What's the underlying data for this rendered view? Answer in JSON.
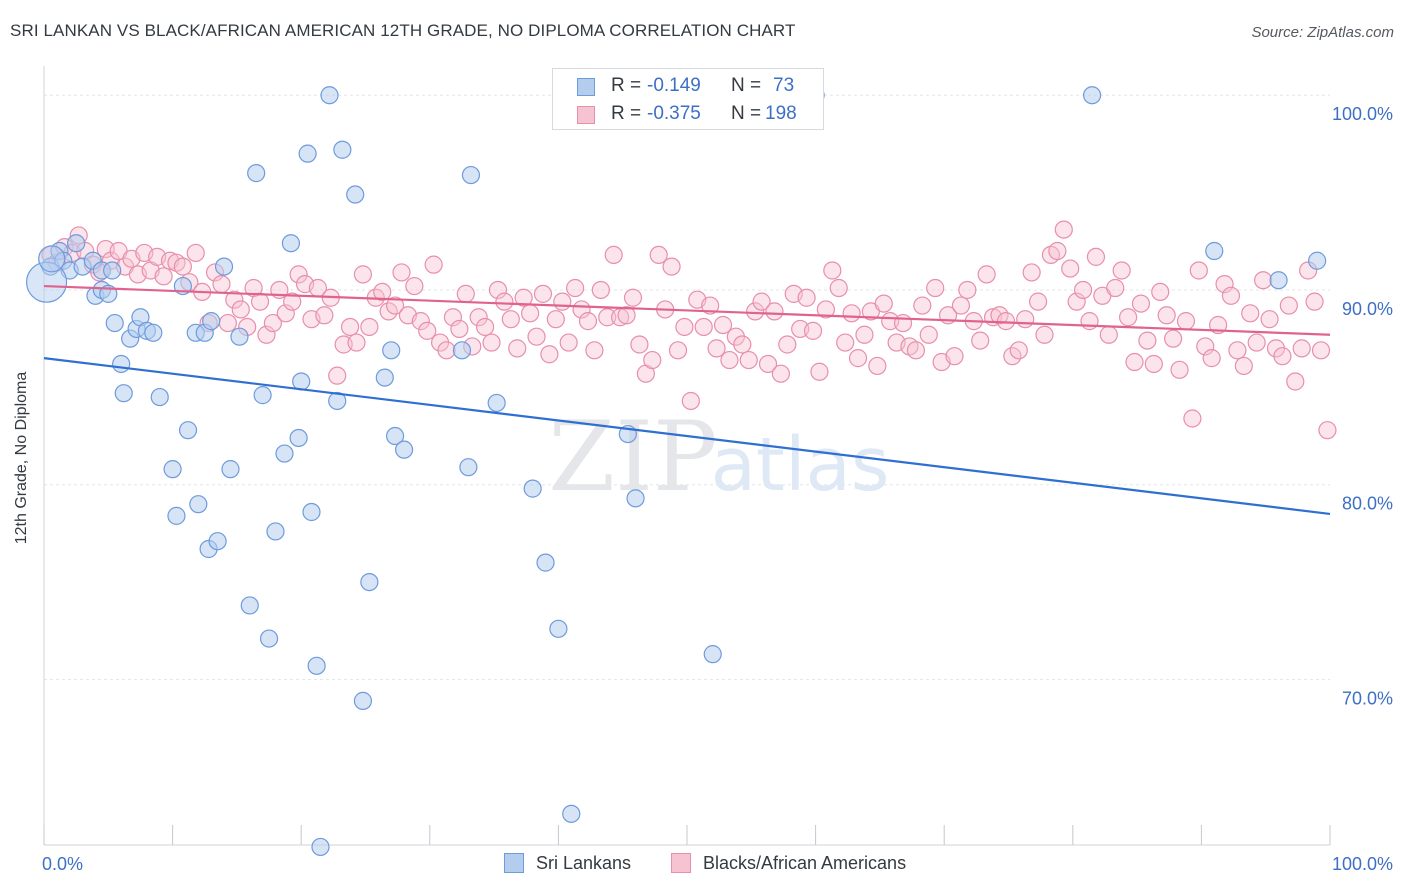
{
  "title": "SRI LANKAN VS BLACK/AFRICAN AMERICAN 12TH GRADE, NO DIPLOMA CORRELATION CHART",
  "source": "Source: ZipAtlas.com",
  "watermark": {
    "zip": "ZIP",
    "atlas": "atlas"
  },
  "colors": {
    "blue_fill": "#b4cdef",
    "blue_stroke": "#6e9bdc",
    "blue_line": "#2f6fd1",
    "pink_fill": "#f6c3d3",
    "pink_stroke": "#e88fab",
    "pink_line": "#e0628e",
    "axis_text": "#3d6fc6",
    "grid": "#e3e6ea"
  },
  "stats": [
    {
      "r_label": "R =",
      "r_value": "-0.149",
      "n_label": "N =",
      "n_value": "73"
    },
    {
      "r_label": "R =",
      "r_value": "-0.375",
      "n_label": "N =",
      "n_value": "198"
    }
  ],
  "legend": [
    {
      "label": "Sri Lankans"
    },
    {
      "label": "Blacks/African Americans"
    }
  ],
  "chart_data": {
    "type": "scatter",
    "xlabel": "",
    "ylabel": "12th Grade, No Diploma",
    "xlim": [
      0,
      100
    ],
    "ylim": [
      61.5,
      101.5
    ],
    "x_tick_labels": [
      "0.0%",
      "100.0%"
    ],
    "y_ticks": [
      70,
      80,
      90,
      100
    ],
    "y_tick_labels": [
      "70.0%",
      "80.0%",
      "90.0%",
      "100.0%"
    ],
    "grid": true,
    "legend_position": "bottom-center",
    "series": [
      {
        "name": "Sri Lankans",
        "r": -0.149,
        "n": 73,
        "trend": {
          "x": [
            0,
            100
          ],
          "y": [
            86.5,
            78.5
          ]
        },
        "points": [
          [
            0.5,
            91.2
          ],
          [
            1.2,
            92
          ],
          [
            1.5,
            91.5
          ],
          [
            2,
            91
          ],
          [
            2.5,
            92.4
          ],
          [
            3,
            91.2
          ],
          [
            3.8,
            91.5
          ],
          [
            4.5,
            91
          ],
          [
            4,
            89.7
          ],
          [
            4.5,
            90
          ],
          [
            5,
            89.8
          ],
          [
            5.3,
            91
          ],
          [
            5.5,
            88.3
          ],
          [
            6,
            86.2
          ],
          [
            6.2,
            84.7
          ],
          [
            6.7,
            87.5
          ],
          [
            7.2,
            88
          ],
          [
            7.5,
            88.6
          ],
          [
            8,
            87.9
          ],
          [
            8.5,
            87.8
          ],
          [
            9,
            84.5
          ],
          [
            10,
            80.8
          ],
          [
            10.3,
            78.4
          ],
          [
            10.8,
            90.2
          ],
          [
            11.2,
            82.8
          ],
          [
            11.8,
            87.8
          ],
          [
            12,
            79
          ],
          [
            12.5,
            87.8
          ],
          [
            12.8,
            76.7
          ],
          [
            13,
            88.4
          ],
          [
            13.5,
            77.1
          ],
          [
            14,
            91.2
          ],
          [
            14.5,
            80.8
          ],
          [
            15.2,
            87.6
          ],
          [
            16,
            73.8
          ],
          [
            16.5,
            96
          ],
          [
            17,
            84.6
          ],
          [
            17.5,
            72.1
          ],
          [
            18,
            77.6
          ],
          [
            18.7,
            81.6
          ],
          [
            19.2,
            92.4
          ],
          [
            19.8,
            82.4
          ],
          [
            20,
            85.3
          ],
          [
            20.5,
            97
          ],
          [
            20.8,
            78.6
          ],
          [
            21.2,
            70.7
          ],
          [
            21.5,
            61.4
          ],
          [
            22.2,
            100
          ],
          [
            22.8,
            84.3
          ],
          [
            23.2,
            97.2
          ],
          [
            24.2,
            94.9
          ],
          [
            24.8,
            68.9
          ],
          [
            25.3,
            75
          ],
          [
            26.5,
            85.5
          ],
          [
            27,
            86.9
          ],
          [
            27.3,
            82.5
          ],
          [
            28,
            81.8
          ],
          [
            32.5,
            86.9
          ],
          [
            33,
            80.9
          ],
          [
            33.2,
            95.9
          ],
          [
            35.2,
            84.2
          ],
          [
            38,
            79.8
          ],
          [
            39,
            76
          ],
          [
            40,
            72.6
          ],
          [
            41,
            63.1
          ],
          [
            45.4,
            82.6
          ],
          [
            46,
            79.3
          ],
          [
            52,
            71.3
          ],
          [
            60,
            100
          ],
          [
            81.5,
            100
          ],
          [
            91,
            92
          ],
          [
            96,
            90.5
          ],
          [
            99,
            91.5
          ]
        ]
      },
      {
        "name": "Blacks/African Americans",
        "r": -0.375,
        "n": 198,
        "trend": {
          "x": [
            0,
            100
          ],
          "y": [
            90.2,
            87.7
          ]
        },
        "points": [
          [
            0.5,
            91.8
          ],
          [
            1,
            91.4
          ],
          [
            1.6,
            92.2
          ],
          [
            2.2,
            91.9
          ],
          [
            2.7,
            92.8
          ],
          [
            3.2,
            92
          ],
          [
            3.8,
            91.3
          ],
          [
            4.3,
            90.9
          ],
          [
            4.8,
            92.1
          ],
          [
            5.2,
            91.5
          ],
          [
            5.8,
            92
          ],
          [
            6.3,
            91.2
          ],
          [
            6.8,
            91.6
          ],
          [
            7.3,
            90.8
          ],
          [
            7.8,
            91.9
          ],
          [
            8.3,
            91
          ],
          [
            8.8,
            91.7
          ],
          [
            9.3,
            90.7
          ],
          [
            9.8,
            91.5
          ],
          [
            10.3,
            91.4
          ],
          [
            10.8,
            91.2
          ],
          [
            11.3,
            90.4
          ],
          [
            11.8,
            91.9
          ],
          [
            12.3,
            89.9
          ],
          [
            12.8,
            88.3
          ],
          [
            13.3,
            90.9
          ],
          [
            13.8,
            90.3
          ],
          [
            14.3,
            88.3
          ],
          [
            14.8,
            89.5
          ],
          [
            15.3,
            89
          ],
          [
            15.8,
            88.1
          ],
          [
            16.3,
            90.1
          ],
          [
            16.8,
            89.4
          ],
          [
            17.3,
            87.7
          ],
          [
            17.8,
            88.3
          ],
          [
            18.3,
            90
          ],
          [
            18.8,
            88.8
          ],
          [
            19.3,
            89.4
          ],
          [
            19.8,
            90.8
          ],
          [
            20.3,
            90.3
          ],
          [
            20.8,
            88.5
          ],
          [
            21.3,
            90.1
          ],
          [
            21.8,
            88.7
          ],
          [
            22.3,
            89.6
          ],
          [
            22.8,
            85.6
          ],
          [
            23.3,
            87.2
          ],
          [
            23.8,
            88.1
          ],
          [
            24.3,
            87.3
          ],
          [
            24.8,
            90.8
          ],
          [
            25.3,
            88.1
          ],
          [
            25.8,
            89.6
          ],
          [
            26.3,
            89.9
          ],
          [
            26.8,
            88.9
          ],
          [
            27.3,
            89.2
          ],
          [
            27.8,
            90.9
          ],
          [
            28.3,
            88.7
          ],
          [
            28.8,
            90.2
          ],
          [
            29.3,
            88.4
          ],
          [
            29.8,
            87.9
          ],
          [
            30.3,
            91.3
          ],
          [
            30.8,
            87.3
          ],
          [
            31.3,
            86.9
          ],
          [
            31.8,
            88.6
          ],
          [
            32.3,
            88
          ],
          [
            32.8,
            89.8
          ],
          [
            33.3,
            87.1
          ],
          [
            33.8,
            88.6
          ],
          [
            34.3,
            88.1
          ],
          [
            34.8,
            87.3
          ],
          [
            35.3,
            90
          ],
          [
            35.8,
            89.4
          ],
          [
            36.3,
            88.5
          ],
          [
            36.8,
            87
          ],
          [
            37.3,
            89.6
          ],
          [
            37.8,
            88.8
          ],
          [
            38.3,
            87.6
          ],
          [
            38.8,
            89.8
          ],
          [
            39.3,
            86.7
          ],
          [
            39.8,
            88.5
          ],
          [
            40.3,
            89.4
          ],
          [
            40.8,
            87.3
          ],
          [
            41.3,
            90.1
          ],
          [
            41.8,
            89
          ],
          [
            42.3,
            88.4
          ],
          [
            42.8,
            86.9
          ],
          [
            43.3,
            90
          ],
          [
            43.8,
            88.6
          ],
          [
            44.3,
            91.8
          ],
          [
            44.8,
            88.6
          ],
          [
            45.3,
            88.7
          ],
          [
            45.8,
            89.6
          ],
          [
            46.3,
            87.2
          ],
          [
            46.8,
            85.7
          ],
          [
            47.3,
            86.4
          ],
          [
            47.8,
            91.8
          ],
          [
            48.3,
            89
          ],
          [
            48.8,
            91.2
          ],
          [
            49.3,
            86.9
          ],
          [
            49.8,
            88.1
          ],
          [
            50.3,
            84.3
          ],
          [
            50.8,
            89.5
          ],
          [
            51.3,
            88.1
          ],
          [
            51.8,
            89.2
          ],
          [
            52.3,
            87
          ],
          [
            52.8,
            88.2
          ],
          [
            53.3,
            86.4
          ],
          [
            53.8,
            87.6
          ],
          [
            54.3,
            87.2
          ],
          [
            54.8,
            86.4
          ],
          [
            55.3,
            88.9
          ],
          [
            55.8,
            89.4
          ],
          [
            56.3,
            86.2
          ],
          [
            56.8,
            88.9
          ],
          [
            57.3,
            85.7
          ],
          [
            57.8,
            87.2
          ],
          [
            58.3,
            89.8
          ],
          [
            58.8,
            88
          ],
          [
            59.3,
            89.6
          ],
          [
            59.8,
            87.9
          ],
          [
            60.3,
            85.8
          ],
          [
            60.8,
            89
          ],
          [
            61.3,
            91
          ],
          [
            61.8,
            90.1
          ],
          [
            62.3,
            87.3
          ],
          [
            62.8,
            88.8
          ],
          [
            63.3,
            86.5
          ],
          [
            63.8,
            87.7
          ],
          [
            64.3,
            88.9
          ],
          [
            64.8,
            86.1
          ],
          [
            65.3,
            89.3
          ],
          [
            65.8,
            88.4
          ],
          [
            66.3,
            87.3
          ],
          [
            66.8,
            88.3
          ],
          [
            67.3,
            87.1
          ],
          [
            67.8,
            86.9
          ],
          [
            68.3,
            89.2
          ],
          [
            68.8,
            87.7
          ],
          [
            69.3,
            90.1
          ],
          [
            69.8,
            86.3
          ],
          [
            70.3,
            88.7
          ],
          [
            70.8,
            86.6
          ],
          [
            71.3,
            89.2
          ],
          [
            71.8,
            90
          ],
          [
            72.3,
            88.4
          ],
          [
            72.8,
            87.4
          ],
          [
            73.3,
            90.8
          ],
          [
            73.8,
            88.6
          ],
          [
            74.3,
            88.7
          ],
          [
            74.8,
            88.4
          ],
          [
            75.3,
            86.6
          ],
          [
            75.8,
            86.9
          ],
          [
            76.3,
            88.5
          ],
          [
            76.8,
            90.9
          ],
          [
            77.3,
            89.4
          ],
          [
            77.8,
            87.7
          ],
          [
            78.3,
            91.8
          ],
          [
            78.8,
            92
          ],
          [
            79.3,
            93.1
          ],
          [
            79.8,
            91.1
          ],
          [
            80.3,
            89.4
          ],
          [
            80.8,
            90
          ],
          [
            81.3,
            88.4
          ],
          [
            81.8,
            91.7
          ],
          [
            82.3,
            89.7
          ],
          [
            82.8,
            87.7
          ],
          [
            83.3,
            90.1
          ],
          [
            83.8,
            91
          ],
          [
            84.3,
            88.6
          ],
          [
            84.8,
            86.3
          ],
          [
            85.3,
            89.3
          ],
          [
            85.8,
            87.4
          ],
          [
            86.3,
            86.2
          ],
          [
            86.8,
            89.9
          ],
          [
            87.3,
            88.7
          ],
          [
            87.8,
            87.5
          ],
          [
            88.3,
            85.9
          ],
          [
            88.8,
            88.4
          ],
          [
            89.3,
            83.4
          ],
          [
            89.8,
            91
          ],
          [
            90.3,
            87.1
          ],
          [
            90.8,
            86.5
          ],
          [
            91.3,
            88.2
          ],
          [
            91.8,
            90.3
          ],
          [
            92.3,
            89.7
          ],
          [
            92.8,
            86.9
          ],
          [
            93.3,
            86.1
          ],
          [
            93.8,
            88.8
          ],
          [
            94.3,
            87.3
          ],
          [
            94.8,
            90.5
          ],
          [
            95.3,
            88.5
          ],
          [
            95.8,
            87
          ],
          [
            96.3,
            86.6
          ],
          [
            96.8,
            89.2
          ],
          [
            97.3,
            85.3
          ],
          [
            97.8,
            87
          ],
          [
            98.3,
            91
          ],
          [
            98.8,
            89.4
          ],
          [
            99.3,
            86.9
          ],
          [
            99.8,
            82.8
          ]
        ]
      }
    ]
  }
}
